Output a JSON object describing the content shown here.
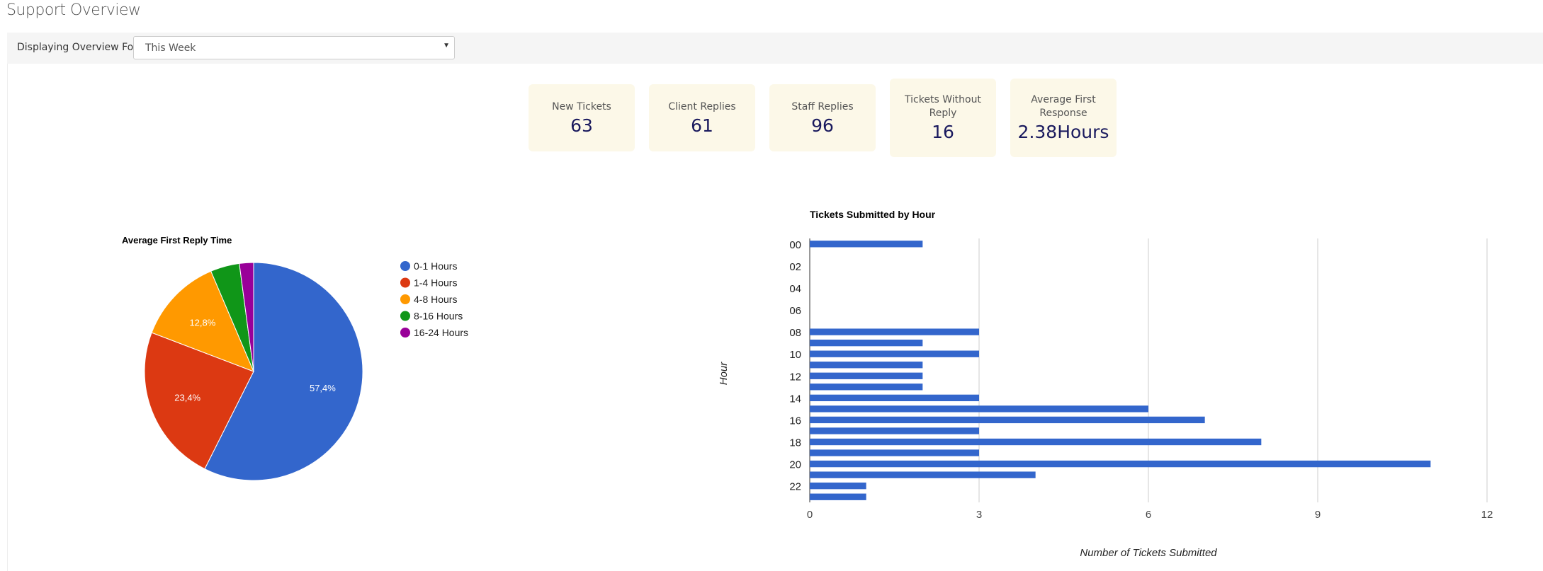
{
  "page": {
    "title": "Support Overview"
  },
  "filter": {
    "label": "Displaying Overview For:",
    "selected": "This Week"
  },
  "stats": [
    {
      "label": "New Tickets",
      "value": "63"
    },
    {
      "label": "Client Replies",
      "value": "61"
    },
    {
      "label": "Staff Replies",
      "value": "96"
    },
    {
      "label": "Tickets Without Reply",
      "value": "16"
    },
    {
      "label": "Average First Response",
      "value": "2.38Hours"
    }
  ],
  "chart_data": [
    {
      "type": "pie",
      "title": "Average First Reply Time",
      "categories": [
        "0-1 Hours",
        "1-4 Hours",
        "4-8 Hours",
        "8-16 Hours",
        "16-24 Hours"
      ],
      "values": [
        57.4,
        23.4,
        12.8,
        4.3,
        2.1
      ],
      "slice_labels": [
        "57,4%",
        "23,4%",
        "12,8%",
        "",
        ""
      ],
      "colors": [
        "#3366cc",
        "#dc3912",
        "#ff9900",
        "#109618",
        "#990099"
      ],
      "legend": "right"
    },
    {
      "type": "bar",
      "orientation": "horizontal",
      "title": "Tickets Submitted by Hour",
      "xlabel": "Number of Tickets Submitted",
      "ylabel": "Hour",
      "categories": [
        "00",
        "01",
        "02",
        "03",
        "04",
        "05",
        "06",
        "07",
        "08",
        "09",
        "10",
        "11",
        "12",
        "13",
        "14",
        "15",
        "16",
        "17",
        "18",
        "19",
        "20",
        "21",
        "22",
        "23"
      ],
      "category_tick_labels": [
        "00",
        "02",
        "04",
        "06",
        "08",
        "10",
        "12",
        "14",
        "16",
        "18",
        "20",
        "22"
      ],
      "values": [
        2,
        0,
        0,
        0,
        0,
        0,
        0,
        0,
        3,
        2,
        3,
        2,
        2,
        2,
        3,
        6,
        7,
        3,
        8,
        3,
        11,
        4,
        1,
        1
      ],
      "xlim": [
        0,
        12
      ],
      "x_ticks": [
        "0",
        "3",
        "6",
        "9",
        "12"
      ],
      "grid": true,
      "color": "#3366cc"
    }
  ]
}
